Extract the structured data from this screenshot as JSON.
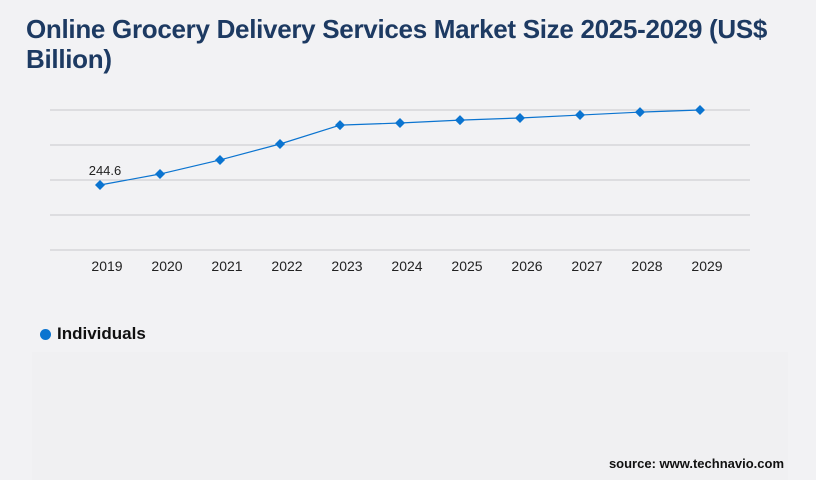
{
  "title": "Online Grocery Delivery Services Market Size 2025-2029 (US$ Billion)",
  "chart_data": {
    "type": "line",
    "title": "Online Grocery Delivery Services Market Size 2025-2029 (US$ Billion)",
    "categories": [
      "2019",
      "2020",
      "2021",
      "2022",
      "2023",
      "2024",
      "2025",
      "2026",
      "2027",
      "2028",
      "2029"
    ],
    "series": [
      {
        "name": "Individuals",
        "values": [
          244.6,
          286,
          339,
          399,
          470,
          478,
          489,
          497,
          508,
          519,
          527
        ],
        "color": "#0b74d0"
      }
    ],
    "data_labels": [
      {
        "category": "2019",
        "text": "244.6"
      }
    ],
    "ylim": [
      0,
      527
    ],
    "grid": true,
    "y_tick_labels_visible": false,
    "legend_position": "bottom-left",
    "marker": "diamond"
  },
  "legend": {
    "label": "Individuals"
  },
  "source": "source: www.technavio.com"
}
